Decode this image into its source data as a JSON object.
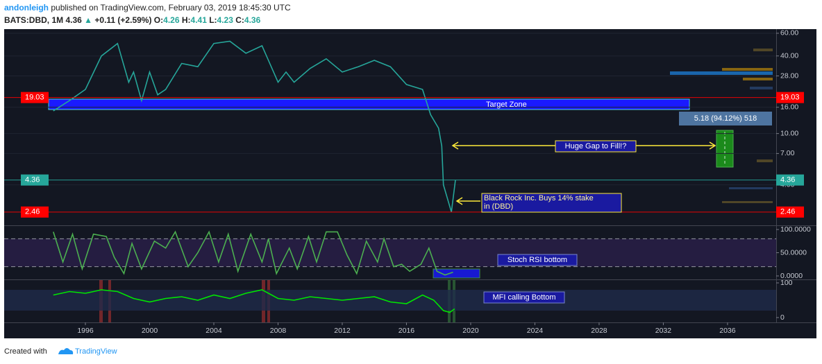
{
  "header": {
    "author": "andonleigh",
    "published": "published on TradingView.com, February 03, 2019 18:45:30 UTC",
    "symbol": "BATS:DBD, 1M",
    "last": "4.36",
    "arrow": "▲",
    "change": "+0.11 (+2.59%)",
    "o_label": "O:",
    "o": "4.26",
    "h_label": "H:",
    "h": "4.41",
    "l_label": "L:",
    "l": "4.23",
    "c_label": "C:",
    "c": "4.36"
  },
  "footer": {
    "created": "Created with",
    "brand": "TradingView"
  },
  "chart_data": [
    {
      "type": "line",
      "log_scale": true,
      "color": "#26a69a",
      "grid": true,
      "x": [
        1994,
        1995,
        1996,
        1997,
        1998,
        1998.7,
        1999,
        1999.5,
        2000,
        2000.5,
        2001,
        2002,
        2003,
        2004,
        2005,
        2006,
        2007,
        2008,
        2008.5,
        2009,
        2010,
        2011,
        2012,
        2013,
        2014,
        2015,
        2016,
        2017,
        2017.5,
        2018,
        2018.2,
        2018.3,
        2018.8,
        2019.05
      ],
      "values": [
        15,
        18,
        22,
        40,
        50,
        25,
        30,
        18,
        30,
        20,
        22,
        35,
        33,
        50,
        52,
        42,
        48,
        25,
        30,
        25,
        32,
        38,
        30,
        33,
        37,
        33,
        24,
        22,
        14,
        11,
        8,
        4,
        2.46,
        4.36
      ],
      "xlim": [
        1990.94,
        2039.03
      ],
      "ylim": [
        1.94,
        64.6
      ],
      "yticks": [
        {
          "value": 60,
          "label": "60.00"
        },
        {
          "value": 40,
          "label": "40.00"
        },
        {
          "value": 28,
          "label": "28.00"
        },
        {
          "value": 16,
          "label": "16.00"
        },
        {
          "value": 10,
          "label": "10.00"
        },
        {
          "value": 7,
          "label": "7.00"
        },
        {
          "value": 4,
          "label": "4.00"
        }
      ],
      "price_lines": [
        {
          "value": 19.03,
          "color": "#ff0000"
        },
        {
          "value": 4.36,
          "color": "#26a69a"
        },
        {
          "value": 2.46,
          "color": "#ff0000"
        }
      ],
      "annotations": [
        "Target Zone",
        "5.18 (94.12%) 518",
        "Huge Gap to Fill!?",
        "Black Rock Inc. Buys 14% stake",
        "in (DBD)"
      ]
    },
    {
      "type": "line",
      "log_scale": false,
      "color": "#4caf50",
      "grid": false,
      "x": [
        1994,
        1994.6,
        1995.2,
        1995.8,
        1996.5,
        1997.3,
        1997.8,
        1998.4,
        1998.9,
        1999.5,
        2000.3,
        2001,
        2001.6,
        2002.4,
        2003,
        2003.7,
        2004.3,
        2004.9,
        2005.5,
        2006.3,
        2007,
        2007.4,
        2007.9,
        2008.7,
        2009.2,
        2009.9,
        2010.4,
        2011,
        2011.7,
        2012.3,
        2012.9,
        2013.5,
        2014.2,
        2014.6,
        2015.2,
        2015.7,
        2016.2,
        2016.9,
        2017.4,
        2017.9,
        2018.4,
        2018.9
      ],
      "values": [
        95,
        30,
        90,
        15,
        90,
        85,
        40,
        5,
        70,
        15,
        75,
        60,
        95,
        20,
        50,
        95,
        30,
        90,
        10,
        90,
        30,
        80,
        5,
        60,
        15,
        85,
        30,
        95,
        95,
        45,
        5,
        75,
        30,
        80,
        20,
        25,
        10,
        25,
        60,
        10,
        2,
        8
      ],
      "xlim": [
        1990.94,
        2039.03
      ],
      "ylim": [
        -6,
        107.5
      ],
      "yticks": [
        {
          "value": 100,
          "label": "100.0000"
        },
        {
          "value": 50,
          "label": "50.0000"
        },
        {
          "value": 0,
          "label": "0.0000"
        }
      ],
      "band": [
        20,
        80
      ],
      "annotations": [
        "Stoch RSI bottom"
      ]
    },
    {
      "type": "line",
      "log_scale": false,
      "color": "#00e600",
      "grid": false,
      "x": [
        1994,
        1995,
        1996,
        1997,
        1998,
        1999,
        2000,
        2001,
        2002,
        2003,
        2004,
        2005,
        2006,
        2007,
        2008,
        2009,
        2010,
        2011,
        2012,
        2013,
        2014,
        2015,
        2016,
        2017,
        2017.7,
        2018.3,
        2018.7,
        2019
      ],
      "values": [
        65,
        75,
        70,
        80,
        75,
        55,
        45,
        55,
        60,
        50,
        65,
        55,
        70,
        80,
        55,
        50,
        60,
        55,
        50,
        55,
        60,
        45,
        40,
        65,
        50,
        20,
        15,
        25
      ],
      "xlim": [
        1990.94,
        2039.03
      ],
      "ylim": [
        -14,
        108
      ],
      "yticks": [
        100,
        0
      ],
      "band": [
        20,
        80
      ],
      "xticks": [
        1996,
        2000,
        2004,
        2008,
        2012,
        2016,
        2020,
        2024,
        2028,
        2032,
        2036
      ],
      "annotations": [
        "MFI calling Bottom"
      ]
    }
  ]
}
